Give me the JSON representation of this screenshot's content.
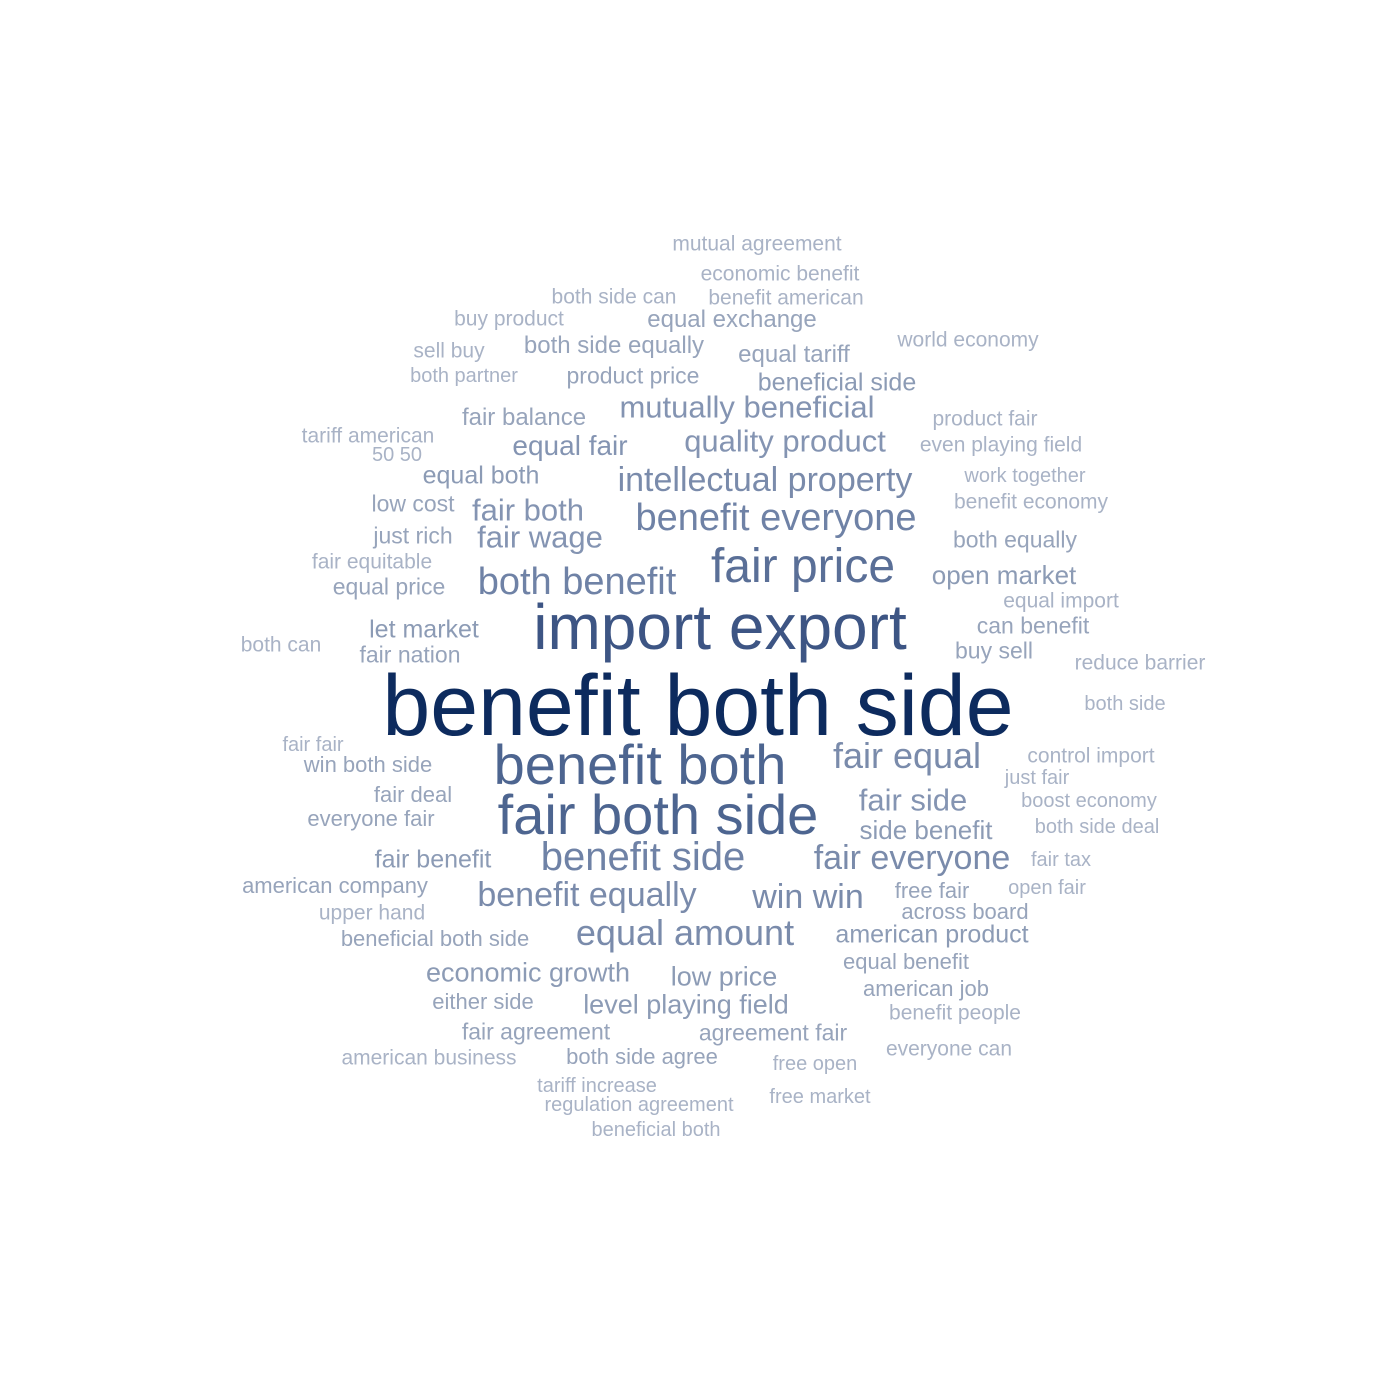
{
  "words": [
    {
      "text": "benefit both side",
      "rank": 1
    },
    {
      "text": "import export",
      "rank": 2
    },
    {
      "text": "benefit both",
      "rank": 3
    },
    {
      "text": "fair both side",
      "rank": 3
    },
    {
      "text": "fair price",
      "rank": 4
    },
    {
      "text": "benefit side",
      "rank": 5
    },
    {
      "text": "both benefit",
      "rank": 5
    },
    {
      "text": "benefit everyone",
      "rank": 5
    },
    {
      "text": "intellectual property",
      "rank": 6
    },
    {
      "text": "fair equal",
      "rank": 6
    },
    {
      "text": "benefit equally",
      "rank": 6
    },
    {
      "text": "equal amount",
      "rank": 6
    },
    {
      "text": "fair everyone",
      "rank": 6
    },
    {
      "text": "win win",
      "rank": 6
    },
    {
      "text": "mutually beneficial",
      "rank": 7
    },
    {
      "text": "quality product",
      "rank": 7
    },
    {
      "text": "fair side",
      "rank": 7
    },
    {
      "text": "fair both",
      "rank": 7
    },
    {
      "text": "fair wage",
      "rank": 7
    },
    {
      "text": "equal fair",
      "rank": 7
    },
    {
      "text": "open market",
      "rank": 8
    },
    {
      "text": "let market",
      "rank": 8
    },
    {
      "text": "equal both",
      "rank": 8
    },
    {
      "text": "side benefit",
      "rank": 8
    },
    {
      "text": "fair benefit",
      "rank": 8
    },
    {
      "text": "economic growth",
      "rank": 8
    },
    {
      "text": "low price",
      "rank": 8
    },
    {
      "text": "level playing field",
      "rank": 8
    },
    {
      "text": "american product",
      "rank": 8
    },
    {
      "text": "beneficial side",
      "rank": 8
    },
    {
      "text": "equal exchange",
      "rank": 9
    },
    {
      "text": "both side equally",
      "rank": 9
    },
    {
      "text": "equal tariff",
      "rank": 9
    },
    {
      "text": "product price",
      "rank": 9
    },
    {
      "text": "fair balance",
      "rank": 9
    },
    {
      "text": "low cost",
      "rank": 9
    },
    {
      "text": "just rich",
      "rank": 9
    },
    {
      "text": "equal price",
      "rank": 9
    },
    {
      "text": "fair nation",
      "rank": 9
    },
    {
      "text": "can benefit",
      "rank": 9
    },
    {
      "text": "buy sell",
      "rank": 9
    },
    {
      "text": "both equally",
      "rank": 9
    },
    {
      "text": "win both side",
      "rank": 9
    },
    {
      "text": "fair deal",
      "rank": 9
    },
    {
      "text": "everyone fair",
      "rank": 9
    },
    {
      "text": "american company",
      "rank": 9
    },
    {
      "text": "beneficial both side",
      "rank": 9
    },
    {
      "text": "free fair",
      "rank": 9
    },
    {
      "text": "across board",
      "rank": 9
    },
    {
      "text": "equal benefit",
      "rank": 9
    },
    {
      "text": "american job",
      "rank": 9
    },
    {
      "text": "either side",
      "rank": 9
    },
    {
      "text": "fair agreement",
      "rank": 9
    },
    {
      "text": "agreement fair",
      "rank": 9
    },
    {
      "text": "both side agree",
      "rank": 9
    },
    {
      "text": "mutual agreement",
      "rank": 10
    },
    {
      "text": "economic benefit",
      "rank": 10
    },
    {
      "text": "both side can",
      "rank": 10
    },
    {
      "text": "benefit american",
      "rank": 10
    },
    {
      "text": "buy product",
      "rank": 10
    },
    {
      "text": "sell buy",
      "rank": 10
    },
    {
      "text": "both partner",
      "rank": 10
    },
    {
      "text": "world economy",
      "rank": 10
    },
    {
      "text": "product fair",
      "rank": 10
    },
    {
      "text": "even playing field",
      "rank": 10
    },
    {
      "text": "tariff american",
      "rank": 10
    },
    {
      "text": "50 50",
      "rank": 10
    },
    {
      "text": "work together",
      "rank": 10
    },
    {
      "text": "benefit economy",
      "rank": 10
    },
    {
      "text": "fair equitable",
      "rank": 10
    },
    {
      "text": "equal import",
      "rank": 10
    },
    {
      "text": "both can",
      "rank": 10
    },
    {
      "text": "reduce barrier",
      "rank": 10
    },
    {
      "text": "both side",
      "rank": 10
    },
    {
      "text": "fair fair",
      "rank": 10
    },
    {
      "text": "control import",
      "rank": 10
    },
    {
      "text": "just fair",
      "rank": 10
    },
    {
      "text": "boost economy",
      "rank": 10
    },
    {
      "text": "both side deal",
      "rank": 10
    },
    {
      "text": "fair tax",
      "rank": 10
    },
    {
      "text": "open fair",
      "rank": 10
    },
    {
      "text": "upper hand",
      "rank": 10
    },
    {
      "text": "benefit people",
      "rank": 10
    },
    {
      "text": "everyone can",
      "rank": 10
    },
    {
      "text": "american business",
      "rank": 10
    },
    {
      "text": "free open",
      "rank": 10
    },
    {
      "text": "tariff increase",
      "rank": 10
    },
    {
      "text": "regulation agreement",
      "rank": 10
    },
    {
      "text": "free market",
      "rank": 10
    },
    {
      "text": "beneficial both",
      "rank": 10
    }
  ],
  "palette": {
    "1": "#0d2b5e",
    "2": "#3d5584",
    "3": "#4d6590",
    "4": "#5a6f97",
    "5": "#6f82a6",
    "6": "#7a8bab",
    "7": "#8494b2",
    "8": "#8c9bb5",
    "9": "#97a4bb",
    "10": "#a9b3c6"
  }
}
